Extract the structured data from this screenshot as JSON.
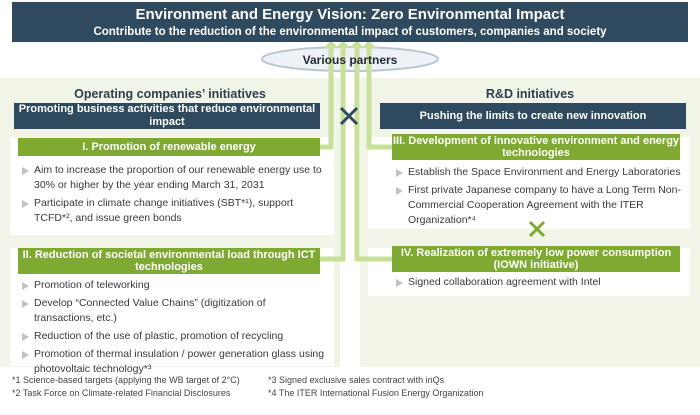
{
  "header": {
    "title": "Environment and Energy Vision: Zero Environmental Impact",
    "subtitle": "Contribute to the reduction of the environmental impact of customers, companies and society"
  },
  "partners": "Various partners",
  "left": {
    "title": "Operating companies’ initiatives",
    "banner": "Promoting business activities that reduce environmental impact",
    "box1": {
      "header": "I. Promotion of renewable energy",
      "items": [
        "Aim to increase the proportion of our renewable energy use to 30% or higher by the year ending March 31, 2031",
        "Participate in climate change initiatives (SBT*¹), support TCFD*², and issue green bonds"
      ]
    },
    "box2": {
      "header": "II. Reduction of societal environmental load through ICT technologies",
      "items": [
        "Promotion of teleworking",
        "Develop “Connected Value Chains” (digitization of transactions, etc.)",
        "Reduction of the use of plastic, promotion of recycling",
        "Promotion of thermal insulation / power generation glass using photovoltaic technology*³"
      ]
    }
  },
  "right": {
    "title": "R&D initiatives",
    "banner": "Pushing the limits to create new innovation",
    "box3": {
      "header": "III. Development of innovative environment and energy technologies",
      "items": [
        "Establish the Space Environment and Energy Laboratories",
        "First private Japanese company to have a Long Term Non-Commercial Cooperation Agreement with the ITER Organization*⁴"
      ]
    },
    "box4": {
      "header": "IV. Realization of extremely low power consumption (IOWN initiative)",
      "items": [
        "Signed collaboration agreement with Intel"
      ]
    }
  },
  "footnotes": [
    "*1 Science-based targets (applying the WB target of 2°C)",
    "*2 Task Force on Climate-related Financial Disclosures",
    "*3 Signed exclusive sales contract with inQs",
    "*4 The ITER International Fusion Energy Organization"
  ],
  "colors": {
    "navy": "#2f4a5e",
    "green": "#7faa32",
    "light_green": "#f0f5e8",
    "arrow": "#c9e09a"
  }
}
